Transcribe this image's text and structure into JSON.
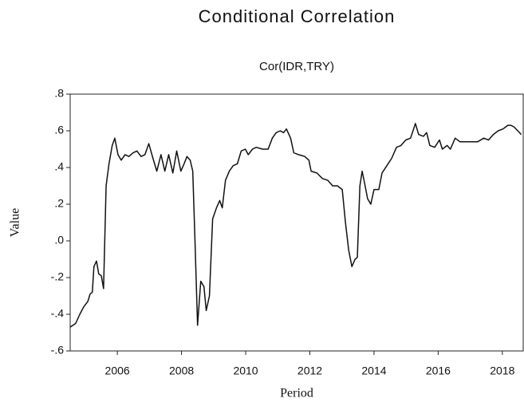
{
  "chart_data": {
    "type": "line",
    "title": "Conditional Correlation",
    "subtitle": "Cor(IDR,TRY)",
    "x_label": "Period",
    "y_label": "Value",
    "xlim": [
      2004.53,
      2018.65
    ],
    "xticks": [
      2006,
      2008,
      2010,
      2012,
      2014,
      2016,
      2018
    ],
    "ylim": [
      -0.6,
      0.8
    ],
    "yticks": [
      {
        "value": 0.8,
        "label": ".8"
      },
      {
        "value": 0.6,
        "label": ".6"
      },
      {
        "value": 0.4,
        "label": ".4"
      },
      {
        "value": 0.2,
        "label": ".2"
      },
      {
        "value": 0,
        "label": ".0"
      },
      {
        "value": -0.2,
        "label": "-.2"
      },
      {
        "value": -0.4,
        "label": "-.4"
      },
      {
        "value": -0.6,
        "label": "-.6"
      }
    ],
    "grid": false,
    "series": [
      {
        "color": "#111111",
        "x": [
          2004.53,
          2004.7,
          2004.83,
          2004.95,
          2005.08,
          2005.15,
          2005.22,
          2005.27,
          2005.35,
          2005.42,
          2005.5,
          2005.57,
          2005.65,
          2005.74,
          2005.84,
          2005.92,
          2006.02,
          2006.12,
          2006.24,
          2006.36,
          2006.49,
          2006.61,
          2006.74,
          2006.86,
          2006.98,
          2007.11,
          2007.23,
          2007.36,
          2007.48,
          2007.6,
          2007.73,
          2007.85,
          2007.98,
          2008.08,
          2008.17,
          2008.27,
          2008.35,
          2008.42,
          2008.5,
          2008.6,
          2008.7,
          2008.77,
          2008.87,
          2008.97,
          2009.09,
          2009.19,
          2009.27,
          2009.37,
          2009.49,
          2009.61,
          2009.74,
          2009.86,
          2009.99,
          2010.08,
          2010.21,
          2010.33,
          2010.53,
          2010.7,
          2010.83,
          2010.95,
          2011.08,
          2011.18,
          2011.27,
          2011.4,
          2011.5,
          2011.65,
          2011.84,
          2011.97,
          2012.04,
          2012.22,
          2012.39,
          2012.56,
          2012.71,
          2012.86,
          2013.01,
          2013.11,
          2013.21,
          2013.31,
          2013.41,
          2013.48,
          2013.56,
          2013.63,
          2013.7,
          2013.8,
          2013.9,
          2014.0,
          2014.15,
          2014.25,
          2014.4,
          2014.55,
          2014.7,
          2014.84,
          2014.99,
          2015.14,
          2015.29,
          2015.39,
          2015.54,
          2015.64,
          2015.74,
          2015.89,
          2016.04,
          2016.13,
          2016.28,
          2016.38,
          2016.53,
          2016.68,
          2016.98,
          2017.23,
          2017.42,
          2017.57,
          2017.72,
          2017.87,
          2018.02,
          2018.17,
          2018.27,
          2018.37,
          2018.59
        ],
        "values": [
          -0.47,
          -0.45,
          -0.4,
          -0.36,
          -0.33,
          -0.29,
          -0.28,
          -0.14,
          -0.11,
          -0.18,
          -0.19,
          -0.26,
          0.3,
          0.42,
          0.52,
          0.56,
          0.47,
          0.44,
          0.47,
          0.46,
          0.48,
          0.49,
          0.46,
          0.47,
          0.53,
          0.45,
          0.38,
          0.47,
          0.38,
          0.47,
          0.37,
          0.49,
          0.38,
          0.42,
          0.46,
          0.44,
          0.38,
          0.0,
          -0.46,
          -0.22,
          -0.25,
          -0.38,
          -0.3,
          0.12,
          0.18,
          0.22,
          0.18,
          0.33,
          0.38,
          0.41,
          0.42,
          0.49,
          0.5,
          0.47,
          0.5,
          0.51,
          0.5,
          0.5,
          0.56,
          0.59,
          0.6,
          0.59,
          0.61,
          0.56,
          0.48,
          0.47,
          0.46,
          0.44,
          0.38,
          0.37,
          0.34,
          0.33,
          0.3,
          0.3,
          0.28,
          0.1,
          -0.05,
          -0.14,
          -0.1,
          -0.09,
          0.3,
          0.38,
          0.32,
          0.23,
          0.2,
          0.28,
          0.28,
          0.37,
          0.41,
          0.45,
          0.51,
          0.52,
          0.55,
          0.56,
          0.64,
          0.58,
          0.57,
          0.59,
          0.52,
          0.51,
          0.55,
          0.5,
          0.52,
          0.5,
          0.56,
          0.54,
          0.54,
          0.54,
          0.56,
          0.55,
          0.58,
          0.6,
          0.61,
          0.63,
          0.63,
          0.62,
          0.58
        ]
      }
    ]
  }
}
